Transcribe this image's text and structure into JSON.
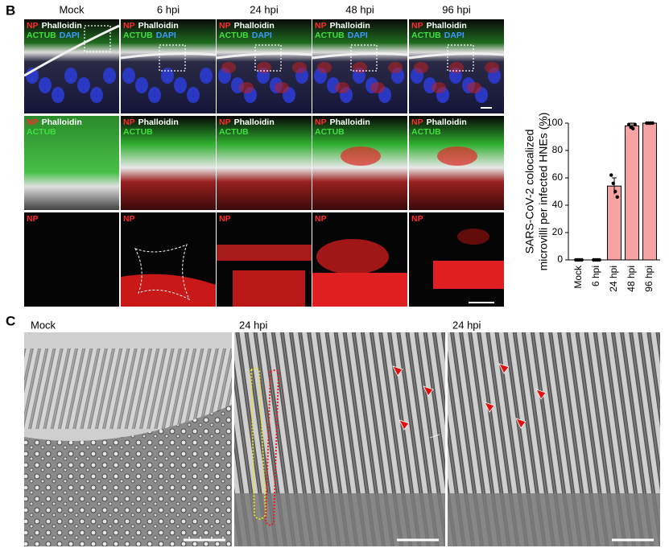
{
  "panel_b": {
    "label": "B",
    "columns": [
      "Mock",
      "6 hpi",
      "24 hpi",
      "48 hpi",
      "96 hpi"
    ],
    "rows": [
      {
        "lines": [
          [
            {
              "text": "NP",
              "color": "#ff2a2a"
            },
            {
              "text": "Phalloidin",
              "color": "#ffffff"
            }
          ],
          [
            {
              "text": "ACTUB",
              "color": "#3fe03f"
            },
            {
              "text": "DAPI",
              "color": "#3a9cff"
            }
          ]
        ]
      },
      {
        "lines": [
          [
            {
              "text": "NP",
              "color": "#ff2a2a"
            },
            {
              "text": "Phalloidin",
              "color": "#ffffff"
            }
          ],
          [
            {
              "text": "ACTUB",
              "color": "#3fe03f"
            }
          ]
        ]
      },
      {
        "lines": [
          [
            {
              "text": "NP",
              "color": "#ff2a2a"
            }
          ]
        ]
      }
    ]
  },
  "chart_data": {
    "type": "bar",
    "y_label": [
      "SARS-CoV-2 colocalized",
      "microvilli per infected HNEs (%)"
    ],
    "categories": [
      "Mock",
      "6 hpi",
      "24 hpi",
      "48 hpi",
      "96 hpi"
    ],
    "values": [
      0,
      0,
      54,
      98,
      100
    ],
    "errors": [
      0,
      0,
      6,
      2,
      0
    ],
    "points": [
      [
        0,
        0,
        0,
        0
      ],
      [
        0,
        0,
        0,
        0
      ],
      [
        62,
        56,
        50,
        46
      ],
      [
        99,
        97,
        96,
        99
      ],
      [
        100,
        100,
        100,
        100
      ]
    ],
    "color": "#f7a3a3",
    "ylim": [
      0,
      100
    ],
    "yticks": [
      0,
      20,
      40,
      60,
      80,
      100
    ]
  },
  "panel_c": {
    "label": "C",
    "images": [
      "Mock",
      "24 hpi",
      "24 hpi"
    ]
  }
}
